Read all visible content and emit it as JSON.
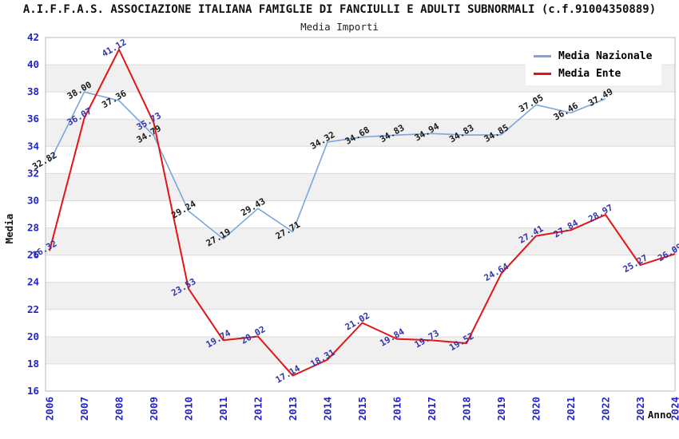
{
  "header": {
    "title": "A.I.F.F.A.S. ASSOCIAZIONE ITALIANA FAMIGLIE DI FANCIULLI E ADULTI SUBNORMALI (c.f.91004350889)",
    "subtitle": "Media Importi"
  },
  "chart_data": {
    "type": "line",
    "x": [
      2006,
      2007,
      2008,
      2009,
      2010,
      2011,
      2012,
      2013,
      2014,
      2015,
      2016,
      2017,
      2018,
      2019,
      2020,
      2021,
      2022,
      2023,
      2024
    ],
    "series": [
      {
        "name": "Media Nazionale",
        "color": "#7aa6dc",
        "label_color": "#1a1a1a",
        "values": [
          32.82,
          38.0,
          37.36,
          34.79,
          29.24,
          27.19,
          29.43,
          27.71,
          34.32,
          34.68,
          34.83,
          34.94,
          34.83,
          34.85,
          37.05,
          36.46,
          37.49,
          null,
          null
        ]
      },
      {
        "name": "Media Ente",
        "color": "#e51414",
        "label_color": "#3333aa",
        "values": [
          26.32,
          36.07,
          41.12,
          35.73,
          23.53,
          19.74,
          20.02,
          17.14,
          18.31,
          21.02,
          19.84,
          19.73,
          19.52,
          24.64,
          27.41,
          27.84,
          28.97,
          25.27,
          26.09
        ]
      }
    ],
    "title": "Media Importi",
    "xlabel": "Anno",
    "ylabel": "Media",
    "ylim": [
      16,
      42
    ],
    "ytick_step": 2,
    "grid": true,
    "legend_position": "top-right",
    "band_colors": [
      "#ffffff",
      "#f0f0f0"
    ],
    "gridline_color": "#dcdcdc",
    "border_color": "#b8b8b8",
    "tick_label_color": "#2323cc",
    "axis_title_color": "#111111"
  }
}
